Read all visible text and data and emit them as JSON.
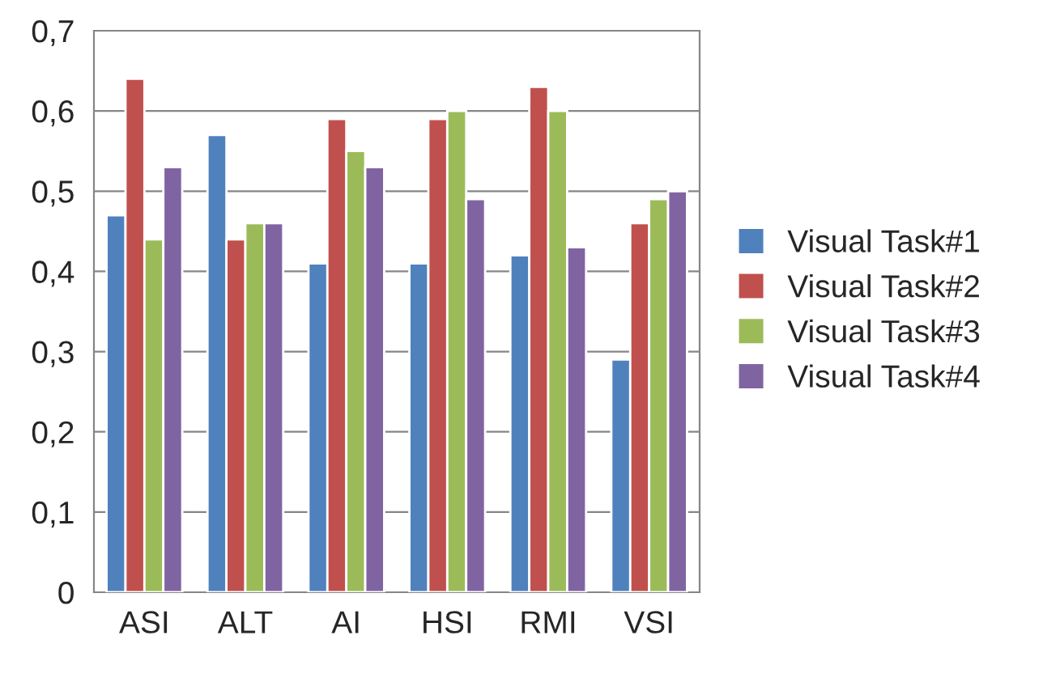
{
  "chart_data": {
    "type": "bar",
    "categories": [
      "ASI",
      "ALT",
      "AI",
      "HSI",
      "RMI",
      "VSI"
    ],
    "series": [
      {
        "name": "Visual Task#1",
        "color": "#4f81bd",
        "values": [
          0.47,
          0.57,
          0.41,
          0.41,
          0.42,
          0.29
        ]
      },
      {
        "name": "Visual Task#2",
        "color": "#c0504d",
        "values": [
          0.64,
          0.44,
          0.59,
          0.59,
          0.63,
          0.46
        ]
      },
      {
        "name": "Visual Task#3",
        "color": "#9bbb59",
        "values": [
          0.44,
          0.46,
          0.55,
          0.6,
          0.6,
          0.49
        ]
      },
      {
        "name": "Visual Task#4",
        "color": "#8064a2",
        "values": [
          0.53,
          0.46,
          0.53,
          0.49,
          0.43,
          0.5
        ]
      }
    ],
    "ylim": [
      0,
      0.7
    ],
    "yticks": [
      {
        "value": 0,
        "label": "0"
      },
      {
        "value": 0.1,
        "label": "0,1"
      },
      {
        "value": 0.2,
        "label": "0,2"
      },
      {
        "value": 0.3,
        "label": "0,3"
      },
      {
        "value": 0.4,
        "label": "0,4"
      },
      {
        "value": 0.5,
        "label": "0,5"
      },
      {
        "value": 0.6,
        "label": "0,6"
      },
      {
        "value": 0.7,
        "label": "0,7"
      }
    ],
    "grid": "y",
    "legend": "right"
  }
}
